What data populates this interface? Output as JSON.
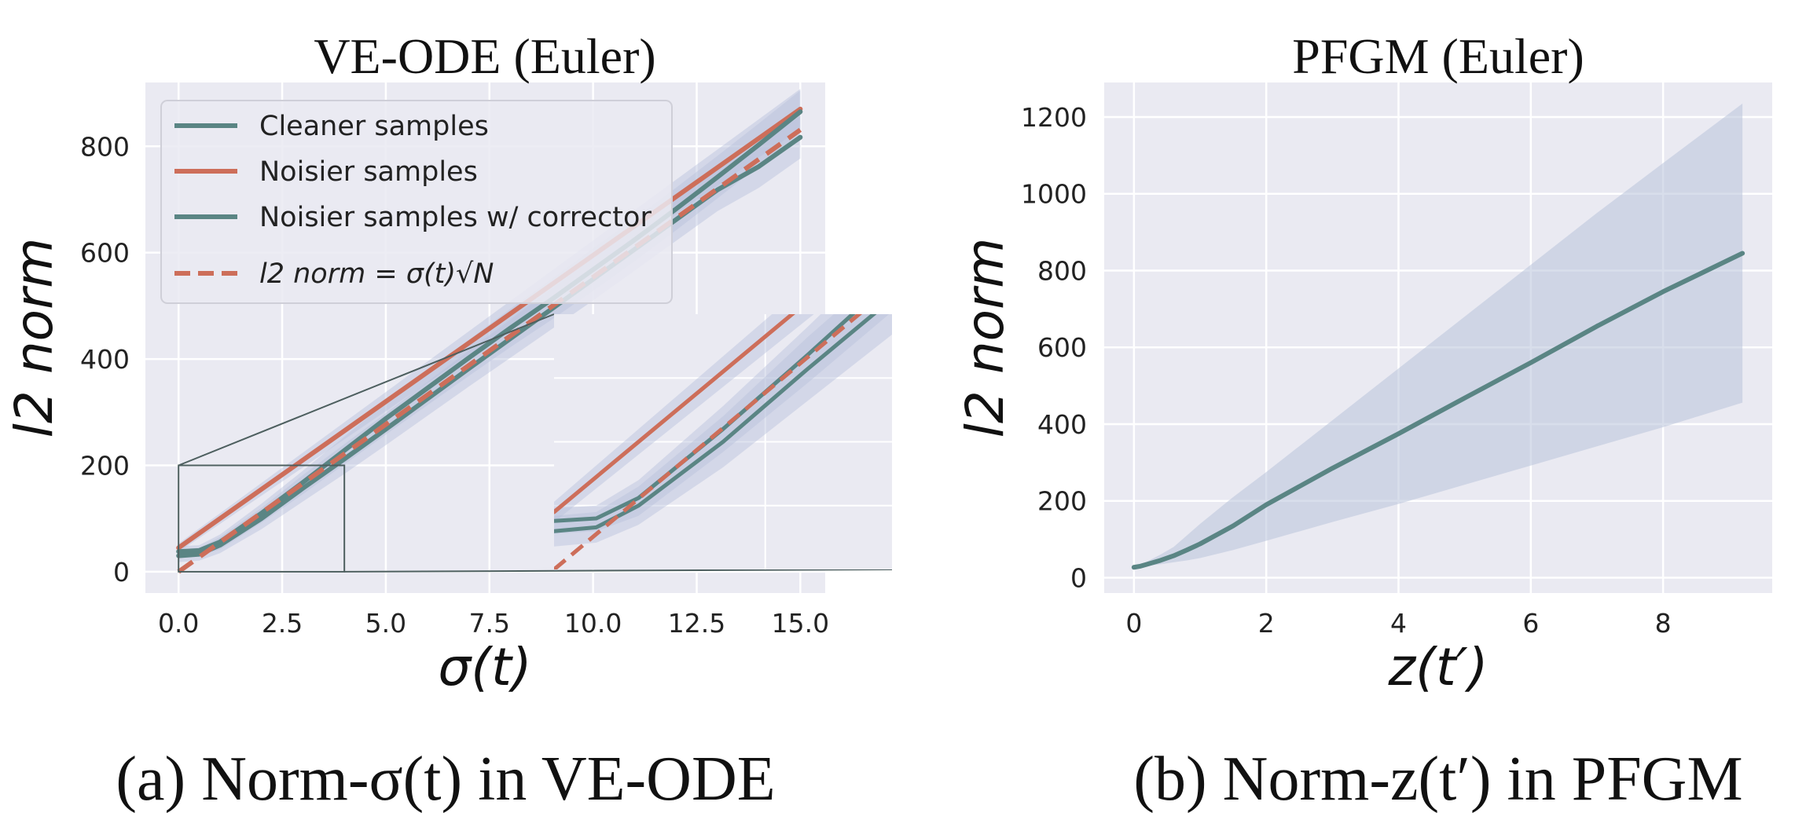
{
  "chart_data": [
    {
      "type": "line",
      "title": "VE-ODE (Euler)",
      "caption": "(a) Norm-σ(t) in VE-ODE",
      "xlabel": "σ(t)",
      "ylabel": "l2 norm",
      "xlim": [
        -0.8,
        15.6
      ],
      "ylim": [
        -40,
        920
      ],
      "xticks": [
        0.0,
        2.5,
        5.0,
        7.5,
        10.0,
        12.5,
        15.0
      ],
      "xtick_labels": [
        "0.0",
        "2.5",
        "5.0",
        "7.5",
        "10.0",
        "12.5",
        "15.0"
      ],
      "yticks": [
        0,
        200,
        400,
        600,
        800
      ],
      "ytick_labels": [
        "0",
        "200",
        "400",
        "600",
        "800"
      ],
      "grid": true,
      "legend": {
        "placement": "top-left",
        "entries": [
          "Cleaner samples",
          "Noisier samples",
          "Noisier samples w/ corrector",
          "l2 norm  = σ(t)√N"
        ]
      },
      "series": [
        {
          "name": "Cleaner samples",
          "color": "#5a8584",
          "style": "solid",
          "x": [
            0,
            0.5,
            1.0,
            2.0,
            3.0,
            4.0,
            5.0,
            6.0,
            7.0,
            8.0,
            9.0,
            10.0,
            11.0,
            12.0,
            13.0,
            14.0,
            15.0
          ],
          "y": [
            30,
            33,
            50,
            100,
            157,
            212,
            268,
            325,
            382,
            438,
            494,
            550,
            606,
            662,
            718,
            762,
            817
          ],
          "band": [
            12,
            12,
            15,
            20,
            25,
            28,
            30,
            32,
            34,
            36,
            38,
            40,
            40,
            40,
            40,
            40,
            40
          ]
        },
        {
          "name": "Noisier samples",
          "color": "#cd6e5a",
          "style": "solid",
          "x": [
            0,
            1.0,
            2.0,
            3.0,
            4.0,
            5.0,
            6.0,
            7.0,
            8.0,
            9.0,
            10.0,
            11.0,
            12.0,
            13.0,
            14.0,
            15.0
          ],
          "y": [
            45,
            100,
            155,
            210,
            265,
            320,
            375,
            430,
            485,
            540,
            595,
            650,
            705,
            760,
            815,
            870
          ],
          "band": [
            8,
            10,
            12,
            14,
            16,
            18,
            20,
            22,
            24,
            26,
            28,
            30,
            32,
            34,
            36,
            38
          ]
        },
        {
          "name": "Noisier samples w/ corrector",
          "color": "#5a8584",
          "style": "solid",
          "x": [
            0,
            0.5,
            1.0,
            2.0,
            3.0,
            4.0,
            5.0,
            6.0,
            7.0,
            8.0,
            9.0,
            10.0,
            11.0,
            12.0,
            13.0,
            14.0,
            15.0
          ],
          "y": [
            38,
            40,
            56,
            110,
            168,
            228,
            288,
            345,
            402,
            458,
            512,
            568,
            624,
            682,
            742,
            803,
            865
          ],
          "band": [
            10,
            10,
            14,
            18,
            22,
            26,
            30,
            32,
            34,
            36,
            38,
            40,
            40,
            40,
            40,
            40,
            40
          ]
        },
        {
          "name": "l2 norm  = σ(t)√N",
          "color": "#cd6e5a",
          "style": "dashed",
          "x": [
            0,
            15.0
          ],
          "y": [
            0,
            831
          ]
        }
      ],
      "inset": {
        "xlim": [
          0,
          4
        ],
        "ylim": [
          0,
          200
        ]
      }
    },
    {
      "type": "line",
      "title": "PFGM (Euler)",
      "caption": "(b) Norm-z(t′) in PFGM",
      "xlabel": "z(t′)",
      "ylabel": "l2 norm",
      "xlim": [
        -0.45,
        9.65
      ],
      "ylim": [
        -40,
        1290
      ],
      "xticks": [
        0,
        2,
        4,
        6,
        8
      ],
      "xtick_labels": [
        "0",
        "2",
        "4",
        "6",
        "8"
      ],
      "yticks": [
        0,
        200,
        400,
        600,
        800,
        1000,
        1200
      ],
      "ytick_labels": [
        "0",
        "200",
        "400",
        "600",
        "800",
        "1000",
        "1200"
      ],
      "grid": true,
      "series": [
        {
          "color": "#5a8584",
          "style": "solid",
          "x": [
            0,
            0.1,
            0.2,
            0.4,
            0.6,
            0.8,
            1.0,
            1.5,
            2.0,
            3.0,
            4.0,
            5.0,
            6.0,
            7.0,
            8.0,
            9.2
          ],
          "y": [
            27,
            30,
            35,
            45,
            57,
            72,
            88,
            135,
            190,
            285,
            375,
            468,
            560,
            655,
            745,
            845
          ],
          "lower": [
            27,
            29,
            31,
            35,
            40,
            45,
            51,
            72,
            96,
            145,
            192,
            242,
            292,
            342,
            392,
            456
          ],
          "upper": [
            27,
            33,
            42,
            60,
            80,
            110,
            140,
            210,
            275,
            410,
            545,
            680,
            815,
            950,
            1080,
            1235
          ]
        }
      ]
    }
  ]
}
